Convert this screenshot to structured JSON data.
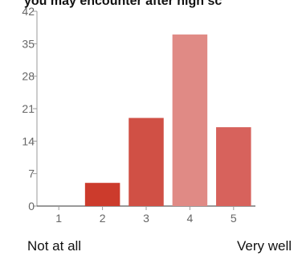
{
  "chart_data": {
    "type": "bar",
    "title": "you may encounter after high sc",
    "categories": [
      "1",
      "2",
      "3",
      "4",
      "5"
    ],
    "values": [
      0,
      5,
      19,
      37,
      17
    ],
    "bar_colors": [
      "#cc3b2c",
      "#cc3b2c",
      "#d05045",
      "#e08a85",
      "#d7625c"
    ],
    "ylim": [
      0,
      42
    ],
    "yticks": [
      0,
      7,
      14,
      21,
      28,
      35,
      42
    ],
    "grid": false,
    "scale_min_label": "Not at all",
    "scale_max_label": "Very well"
  }
}
